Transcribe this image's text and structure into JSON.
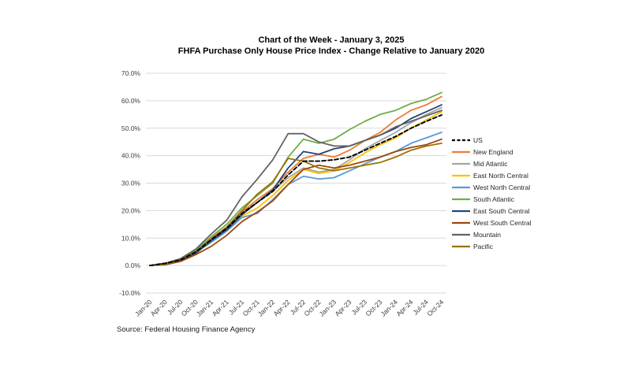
{
  "title": {
    "line1": "Chart of the Week - January 3, 2025",
    "line2": "FHFA Purchase Only House Price Index - Change Relative to January 2020"
  },
  "source": "Source: Federal Housing Finance Agency",
  "chart_data": {
    "type": "line",
    "title": "Chart of the Week - January 3, 2025",
    "subtitle": "FHFA Purchase Only House Price Index - Change Relative to January 2020",
    "xlabel": "",
    "ylabel": "",
    "unit": "percent",
    "ylim": [
      -10,
      70
    ],
    "ytick_step": 10,
    "ytick_labels": [
      "-10.0%",
      "0.0%",
      "10.0%",
      "20.0%",
      "30.0%",
      "40.0%",
      "50.0%",
      "60.0%",
      "70.0%"
    ],
    "grid": "horizontal",
    "gridline_color": "#d9d9d9",
    "axis_label_color": "#404040",
    "legend_position": "right",
    "categories": [
      "Jan-20",
      "Apr-20",
      "Jul-20",
      "Oct-20",
      "Jan-21",
      "Apr-21",
      "Jul-21",
      "Oct-21",
      "Jan-22",
      "Apr-22",
      "Jul-22",
      "Oct-22",
      "Jan-23",
      "Apr-23",
      "Jul-23",
      "Oct-23",
      "Jan-24",
      "Apr-24",
      "Jul-24",
      "Oct-24"
    ],
    "series": [
      {
        "name": "US",
        "color": "#000000",
        "dash": "dashed",
        "values": [
          0,
          0.8,
          2.0,
          5.0,
          9.5,
          13.5,
          19.0,
          23.0,
          27.0,
          33.0,
          38.0,
          38.0,
          38.5,
          39.5,
          42.0,
          44.5,
          47.0,
          50.0,
          52.5,
          54.8
        ]
      },
      {
        "name": "New England",
        "color": "#ED7D31",
        "dash": "solid",
        "values": [
          0,
          0.7,
          2.2,
          5.2,
          10.0,
          14.0,
          19.5,
          24.0,
          28.0,
          34.0,
          39.0,
          40.5,
          39.5,
          42.0,
          45.5,
          48.5,
          53.0,
          56.5,
          58.5,
          61.5
        ]
      },
      {
        "name": "Mid Atlantic",
        "color": "#A5A5A5",
        "dash": "solid",
        "values": [
          0,
          0.8,
          1.8,
          4.8,
          9.5,
          13.5,
          19.0,
          23.0,
          27.0,
          32.0,
          35.5,
          34.0,
          35.0,
          38.5,
          42.5,
          45.5,
          48.5,
          52.0,
          55.0,
          57.5
        ]
      },
      {
        "name": "East North Central",
        "color": "#FFC000",
        "dash": "solid",
        "values": [
          0,
          0.5,
          1.8,
          4.5,
          9.0,
          13.0,
          18.0,
          21.0,
          25.5,
          31.0,
          35.0,
          33.5,
          34.5,
          37.5,
          41.0,
          44.0,
          46.5,
          50.0,
          53.0,
          56.0
        ]
      },
      {
        "name": "West North Central",
        "color": "#5B9BD5",
        "dash": "solid",
        "values": [
          0,
          0.8,
          2.2,
          4.8,
          8.5,
          12.5,
          17.5,
          19.0,
          24.0,
          29.5,
          32.5,
          31.5,
          32.0,
          34.5,
          37.0,
          39.5,
          41.5,
          44.5,
          46.5,
          48.5
        ]
      },
      {
        "name": "South Atlantic",
        "color": "#70AD47",
        "dash": "solid",
        "values": [
          0,
          0.7,
          2.2,
          5.5,
          10.5,
          15.0,
          21.0,
          25.5,
          30.0,
          39.5,
          46.0,
          44.5,
          46.0,
          49.5,
          52.5,
          55.0,
          56.5,
          59.0,
          60.5,
          63.0
        ]
      },
      {
        "name": "East South Central",
        "color": "#264478",
        "dash": "solid",
        "values": [
          0,
          0.5,
          1.8,
          4.5,
          9.0,
          13.0,
          18.5,
          23.0,
          27.5,
          35.5,
          41.5,
          40.5,
          42.5,
          43.5,
          45.5,
          47.5,
          50.0,
          53.5,
          56.0,
          58.5
        ]
      },
      {
        "name": "West South Central",
        "color": "#9E480E",
        "dash": "solid",
        "values": [
          0,
          0.3,
          1.5,
          4.0,
          7.0,
          11.0,
          16.0,
          19.5,
          23.5,
          29.5,
          35.0,
          36.5,
          35.5,
          36.5,
          38.0,
          39.5,
          41.5,
          43.0,
          44.0,
          46.0
        ]
      },
      {
        "name": "Mountain",
        "color": "#636363",
        "dash": "solid",
        "values": [
          0,
          0.8,
          2.5,
          6.0,
          11.5,
          16.5,
          25.0,
          31.5,
          38.5,
          48.0,
          48.0,
          45.0,
          43.5,
          43.5,
          45.5,
          47.5,
          50.5,
          52.5,
          54.5,
          56.5
        ]
      },
      {
        "name": "Pacific",
        "color": "#997300",
        "dash": "solid",
        "values": [
          0,
          0.5,
          2.0,
          5.0,
          9.5,
          14.0,
          20.0,
          26.0,
          30.5,
          39.0,
          38.0,
          35.5,
          34.5,
          35.5,
          36.5,
          37.5,
          39.5,
          42.0,
          43.5,
          44.5
        ]
      }
    ]
  }
}
